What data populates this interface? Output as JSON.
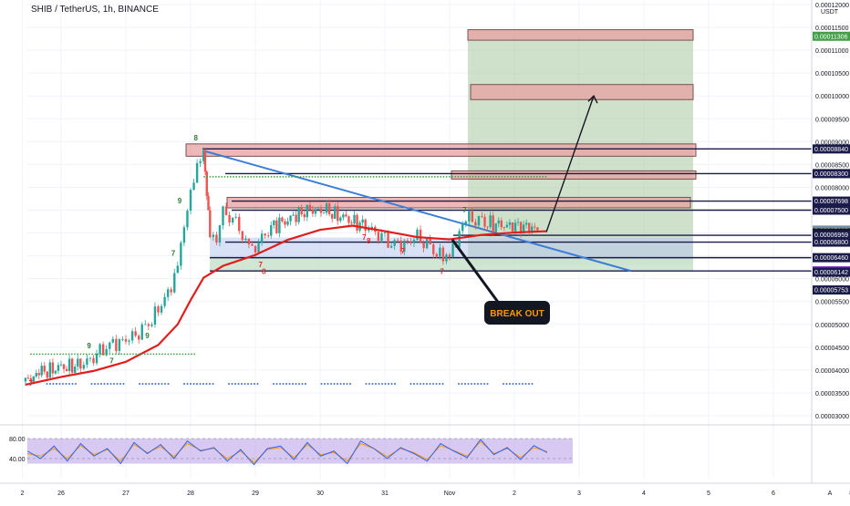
{
  "header": {
    "symbol_title": "SHIB / TetherUS, 1h, BINANCE"
  },
  "colors": {
    "candle_up": "#26a69a",
    "candle_down": "#ef5350",
    "ema": "#e01e1e",
    "trendline": "#3b7dd8",
    "target_zone": "#a8c8a0",
    "stop_zone": "#c8d8f0",
    "resistance_box": "#e8a0a0",
    "box_border": "#1b1b4a",
    "rsi_band": "#b79ce8",
    "rsi_line_1": "#2962ff",
    "rsi_line_2": "#ff9800",
    "tag_current": "#78909c",
    "tag_black": "#131722",
    "tag_green": "#43a047",
    "tag_purple": "#7b2cbf",
    "tag_navy": "#1b1b4a"
  },
  "price_axis": {
    "unit_label": "USDT",
    "ticks": [
      "0.00012000",
      "0.00011500",
      "0.00011000",
      "0.00010500",
      "0.00010000",
      "0.00009500",
      "0.00009000",
      "0.00008500",
      "0.00008000",
      "0.00007500",
      "0.00007000",
      "0.00006500",
      "0.00006000",
      "0.00005500",
      "0.00005000",
      "0.00004500",
      "0.00004000",
      "0.00003500",
      "0.00003000"
    ]
  },
  "price_tags": [
    {
      "text": "0.00011306",
      "value": 0.00011306,
      "style": "green"
    },
    {
      "text": "0.00008840",
      "value": 8.84e-05,
      "style": "navy"
    },
    {
      "text": "0.00008300",
      "value": 8.3e-05,
      "style": "navy"
    },
    {
      "text": "0.00007698",
      "value": 7.698e-05,
      "style": "navy"
    },
    {
      "text": "0.00007500",
      "value": 7.5e-05,
      "style": "navy"
    },
    {
      "text": "0.00007063",
      "value": 7.063e-05,
      "style": "current",
      "sub": "21:48"
    },
    {
      "text": "0.00007001",
      "value": 7.001e-05,
      "style": "black"
    },
    {
      "text": "0.00006959",
      "value": 6.959e-05,
      "style": "navy"
    },
    {
      "text": "0.00006800",
      "value": 6.8e-05,
      "style": "navy"
    },
    {
      "text": "0.00006460",
      "value": 6.46e-05,
      "style": "navy"
    },
    {
      "text": "0.00006171",
      "value": 6.171e-05,
      "style": "purple"
    },
    {
      "text": "0.00006142",
      "value": 6.142e-05,
      "style": "navy"
    },
    {
      "text": "0.00005753",
      "value": 5.753e-05,
      "style": "navy"
    }
  ],
  "time_axis": {
    "labels": [
      {
        "text": "2",
        "t": -0.6
      },
      {
        "text": "26",
        "t": 0
      },
      {
        "text": "27",
        "t": 1
      },
      {
        "text": "28",
        "t": 2
      },
      {
        "text": "29",
        "t": 3
      },
      {
        "text": "30",
        "t": 4
      },
      {
        "text": "31",
        "t": 5
      },
      {
        "text": "Nov",
        "t": 6
      },
      {
        "text": "2",
        "t": 7
      },
      {
        "text": "3",
        "t": 8
      },
      {
        "text": "4",
        "t": 9
      },
      {
        "text": "5",
        "t": 10
      },
      {
        "text": "6",
        "t": 11
      },
      {
        "text": "8",
        "t": 12.2
      }
    ],
    "corner_label": "A"
  },
  "annotation": {
    "label": "BREAK OUT"
  },
  "rsi": {
    "ticks": [
      "80.00",
      "40.00"
    ],
    "band": [
      30,
      80
    ]
  },
  "chart_data": {
    "type": "candlestick",
    "timeframe": "1h",
    "x_unit": "days (0 = Oct 26)",
    "ylim": [
      3e-05,
      0.00012
    ],
    "close_series": [
      [
        -0.55,
        3.75e-05
      ],
      [
        -0.3,
        3.95e-05
      ],
      [
        0,
        4.05e-05
      ],
      [
        0.3,
        4.1e-05
      ],
      [
        0.5,
        4.3e-05
      ],
      [
        0.7,
        4.55e-05
      ],
      [
        0.9,
        4.62e-05
      ],
      [
        1.1,
        4.7e-05
      ],
      [
        1.3,
        4.9e-05
      ],
      [
        1.5,
        5.3e-05
      ],
      [
        1.7,
        5.85e-05
      ],
      [
        1.8,
        6.4e-05
      ],
      [
        1.9,
        7.1e-05
      ],
      [
        2.0,
        7.8e-05
      ],
      [
        2.1,
        8.4e-05
      ],
      [
        2.2,
        8.82e-05
      ],
      [
        2.25,
        7.95e-05
      ],
      [
        2.3,
        7.05e-05
      ],
      [
        2.4,
        6.8e-05
      ],
      [
        2.5,
        7.45e-05
      ],
      [
        2.7,
        7.2e-05
      ],
      [
        2.85,
        6.85e-05
      ],
      [
        3.0,
        6.7e-05
      ],
      [
        3.2,
        7.1e-05
      ],
      [
        3.5,
        7.3e-05
      ],
      [
        3.8,
        7.5e-05
      ],
      [
        4.1,
        7.48e-05
      ],
      [
        4.4,
        7.3e-05
      ],
      [
        4.7,
        7.15e-05
      ],
      [
        4.9,
        7e-05
      ],
      [
        5.1,
        6.8e-05
      ],
      [
        5.3,
        6.75e-05
      ],
      [
        5.5,
        6.9e-05
      ],
      [
        5.7,
        6.65e-05
      ],
      [
        5.9,
        6.45e-05
      ],
      [
        6.0,
        6.65e-05
      ],
      [
        6.1,
        6.8e-05
      ],
      [
        6.2,
        7.15e-05
      ],
      [
        6.3,
        7.3e-05
      ],
      [
        6.5,
        7.22e-05
      ],
      [
        6.8,
        7.16e-05
      ],
      [
        7.1,
        7.16e-05
      ],
      [
        7.4,
        7.06e-05
      ]
    ],
    "ema": [
      [
        -0.55,
        3.68e-05
      ],
      [
        0,
        3.85e-05
      ],
      [
        0.5,
        3.98e-05
      ],
      [
        1,
        4.18e-05
      ],
      [
        1.5,
        4.55e-05
      ],
      [
        1.8,
        5e-05
      ],
      [
        2.0,
        5.53e-05
      ],
      [
        2.2,
        6.02e-05
      ],
      [
        2.5,
        6.28e-05
      ],
      [
        3,
        6.52e-05
      ],
      [
        3.5,
        6.85e-05
      ],
      [
        4,
        7.07e-05
      ],
      [
        4.5,
        7.16e-05
      ],
      [
        5,
        7.04e-05
      ],
      [
        5.5,
        6.91e-05
      ],
      [
        6,
        6.86e-05
      ],
      [
        6.5,
        6.96e-05
      ],
      [
        7,
        7.01e-05
      ],
      [
        7.5,
        7.04e-05
      ]
    ],
    "trendline": [
      [
        2.2,
        8.8e-05
      ],
      [
        8.8,
        6.17e-05
      ]
    ],
    "zones": {
      "profit": [
        6.3e-05,
        0.0001145
      ],
      "stop": [
        6.17e-05,
        6.9e-05
      ]
    },
    "levels": [
      8.84e-05,
      8.3e-05,
      7.698e-05,
      7.5e-05,
      6.95e-05,
      6.8e-05,
      6.46e-05,
      6.17e-05
    ],
    "resistance_boxes": [
      [
        8.95e-05,
        8.68e-05
      ],
      [
        8.36e-05,
        8.18e-05
      ],
      [
        7.78e-05,
        7.55e-05
      ],
      [
        0.0001145,
        0.0001122
      ],
      [
        0.0001025,
        9.92e-05
      ]
    ],
    "projection_arrow": [
      [
        7.45,
        7.02e-05
      ],
      [
        8.3,
        0.0001
      ]
    ],
    "sequence_numbers": [
      {
        "text": "8",
        "t": 2.05,
        "v": 9.03e-05,
        "color": "green"
      },
      {
        "text": "9",
        "t": 1.8,
        "v": 7.65e-05,
        "color": "green"
      },
      {
        "text": "7",
        "t": 1.7,
        "v": 6.5e-05,
        "color": "green"
      },
      {
        "text": "9",
        "t": 1.3,
        "v": 4.7e-05,
        "color": "green"
      },
      {
        "text": "7",
        "t": 0.75,
        "v": 4.15e-05,
        "color": "green"
      },
      {
        "text": "9",
        "t": 0.4,
        "v": 4.48e-05,
        "color": "green"
      },
      {
        "text": "7",
        "t": 6.2,
        "v": 7.45e-05,
        "color": "green"
      },
      {
        "text": "7",
        "t": 3.05,
        "v": 6.25e-05,
        "color": "red"
      },
      {
        "text": "8",
        "t": 3.1,
        "v": 6.1e-05,
        "color": "red"
      },
      {
        "text": "7",
        "t": 4.65,
        "v": 6.85e-05,
        "color": "red"
      },
      {
        "text": "8",
        "t": 4.72,
        "v": 6.77e-05,
        "color": "red"
      },
      {
        "text": "7",
        "t": 5.25,
        "v": 6.55e-05,
        "color": "red"
      },
      {
        "text": "7",
        "t": 5.85,
        "v": 6.1e-05,
        "color": "red"
      },
      {
        "text": "7",
        "t": -0.5,
        "v": 3.66e-05,
        "color": "red"
      }
    ],
    "rsi_series_1": [
      55,
      40,
      65,
      35,
      70,
      45,
      60,
      30,
      72,
      50,
      68,
      40,
      75,
      55,
      62,
      35,
      58,
      28,
      60,
      65,
      38,
      72,
      45,
      55,
      30,
      75,
      60,
      40,
      62,
      50,
      35,
      70,
      55,
      42,
      78,
      48,
      62,
      38,
      66,
      52
    ],
    "rsi_series_2": [
      50,
      45,
      60,
      40,
      66,
      48,
      58,
      35,
      68,
      52,
      64,
      44,
      70,
      57,
      60,
      40,
      55,
      32,
      58,
      62,
      42,
      68,
      48,
      52,
      35,
      70,
      60,
      44,
      60,
      52,
      38,
      66,
      56,
      45,
      74,
      50,
      60,
      42,
      62,
      54
    ]
  }
}
